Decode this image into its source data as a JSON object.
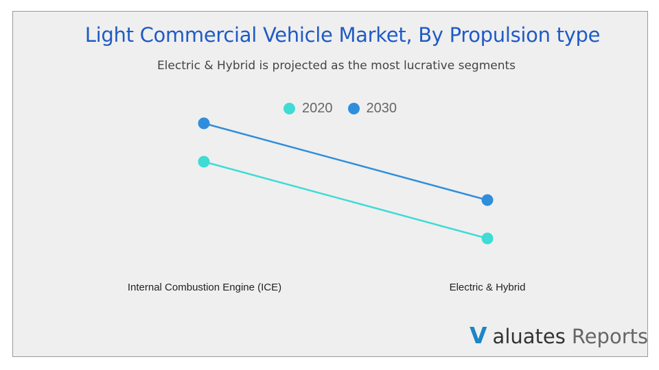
{
  "chart_data": {
    "type": "line",
    "title": "Light Commercial Vehicle Market, By Propulsion type",
    "subtitle": "Electric & Hybrid is projected as the most lucrative segments",
    "categories": [
      "Internal Combustion Engine (ICE)",
      "Electric & Hybrid"
    ],
    "series": [
      {
        "name": "2020",
        "values": [
          60,
          20
        ],
        "color": "#3fdbd5"
      },
      {
        "name": "2030",
        "values": [
          80,
          40
        ],
        "color": "#2f8edc"
      }
    ],
    "ylim": [
      0,
      100
    ],
    "axes_visible": false,
    "grid": false,
    "legend_position": "top-center"
  },
  "logo": {
    "mark": "V",
    "text1": "aluates",
    "text2": "Reports"
  }
}
